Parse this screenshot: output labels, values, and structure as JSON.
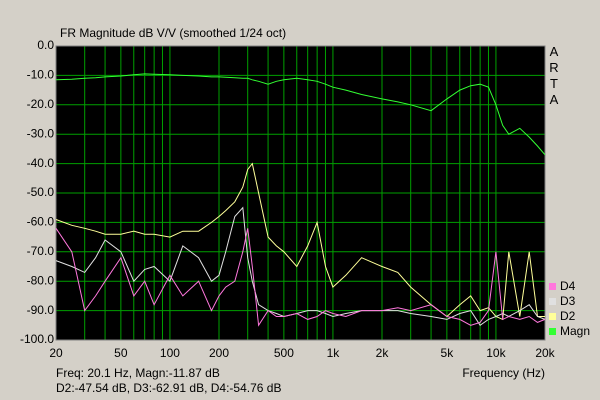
{
  "chart_data": {
    "type": "line",
    "title": "FR Magnitude dB V/V (smoothed 1/24 oct)",
    "x_label": "Frequency (Hz)",
    "brand": "ARTA",
    "readout": [
      "Freq: 20.1 Hz, Magn:-11.87 dB",
      "D2:-47.54 dB, D3:-62.91 dB, D4:-54.76 dB"
    ],
    "log_x": true,
    "grid": true,
    "grid_color": "#00a000",
    "background": "#000000",
    "legend": "lower right",
    "xlim": [
      20,
      20000
    ],
    "ylim": [
      -100,
      0
    ],
    "xticks": [
      20,
      50,
      100,
      200,
      500,
      {
        "value": 1000,
        "label": "1k"
      },
      {
        "value": 2000,
        "label": "2k"
      },
      {
        "value": 5000,
        "label": "5k"
      },
      {
        "value": 10000,
        "label": "10k"
      },
      {
        "value": 20000,
        "label": "20k"
      }
    ],
    "x_minor_grid": [
      30,
      40,
      60,
      70,
      80,
      90,
      300,
      400,
      600,
      700,
      800,
      900,
      3000,
      4000,
      6000,
      7000,
      8000,
      9000
    ],
    "yticks": [
      {
        "value": 0,
        "label": "0.0"
      },
      {
        "value": -10,
        "label": "-10.0"
      },
      {
        "value": -20,
        "label": "-20.0"
      },
      {
        "value": -30,
        "label": "-30.0"
      },
      {
        "value": -40,
        "label": "-40.0"
      },
      {
        "value": -50,
        "label": "-50.0"
      },
      {
        "value": -60,
        "label": "-60.0"
      },
      {
        "value": -70,
        "label": "-70.0"
      },
      {
        "value": -80,
        "label": "-80.0"
      },
      {
        "value": -90,
        "label": "-90.0"
      },
      {
        "value": -100,
        "label": "-100.0"
      }
    ],
    "x": [
      20,
      25,
      30,
      35,
      40,
      50,
      60,
      70,
      80,
      100,
      120,
      150,
      180,
      200,
      220,
      250,
      280,
      300,
      320,
      350,
      400,
      450,
      500,
      600,
      700,
      800,
      900,
      1000,
      1200,
      1500,
      2000,
      2500,
      3000,
      4000,
      5000,
      6000,
      7000,
      8000,
      9000,
      10000,
      11000,
      12000,
      14000,
      16000,
      18000,
      20000
    ],
    "series": [
      {
        "name": "Magn",
        "color": "#33ff33",
        "values": [
          -11.5,
          -11.3,
          -11,
          -10.8,
          -10.5,
          -10.2,
          -9.8,
          -9.5,
          -9.6,
          -9.8,
          -10,
          -10.2,
          -10.5,
          -10.5,
          -10.6,
          -10.8,
          -11,
          -11,
          -11.5,
          -12,
          -13,
          -12,
          -11.5,
          -11,
          -11.5,
          -12,
          -13,
          -14,
          -15,
          -16.5,
          -18,
          -19,
          -20,
          -22,
          -18,
          -15,
          -13.5,
          -13,
          -14,
          -20,
          -27,
          -30,
          -28,
          -31,
          -34,
          -37
        ]
      },
      {
        "name": "D2",
        "color": "#ffff99",
        "values": [
          -59,
          -61,
          -62,
          -63,
          -64,
          -64,
          -63,
          -64,
          -64,
          -65,
          -63,
          -63,
          -60,
          -58,
          -56,
          -53,
          -48,
          -42,
          -40,
          -50,
          -65,
          -68,
          -70,
          -75,
          -68,
          -60,
          -75,
          -82,
          -78,
          -72,
          -75,
          -77,
          -82,
          -88,
          -92,
          -88,
          -85,
          -90,
          -89,
          -92,
          -93,
          -70,
          -92,
          -70,
          -92,
          -92
        ]
      },
      {
        "name": "D3",
        "color": "#e0e0e0",
        "values": [
          -73,
          -75,
          -77,
          -72,
          -66,
          -70,
          -80,
          -76,
          -75,
          -80,
          -68,
          -72,
          -80,
          -78,
          -70,
          -58,
          -55,
          -72,
          -80,
          -88,
          -90,
          -91,
          -92,
          -91,
          -90,
          -90,
          -91,
          -92,
          -91,
          -90,
          -90,
          -90,
          -91,
          -92,
          -93,
          -91,
          -90,
          -95,
          -93,
          -92,
          -91,
          -92,
          -90,
          -88,
          -92,
          -93
        ]
      },
      {
        "name": "D4",
        "color": "#ff77dd",
        "values": [
          -62,
          -70,
          -90,
          -85,
          -80,
          -72,
          -85,
          -80,
          -88,
          -78,
          -85,
          -80,
          -90,
          -85,
          -82,
          -80,
          -70,
          -62,
          -75,
          -95,
          -90,
          -92,
          -92,
          -91,
          -93,
          -92,
          -90,
          -91,
          -92,
          -90,
          -90,
          -89,
          -90,
          -88,
          -92,
          -93,
          -95,
          -94,
          -90,
          -70,
          -93,
          -92,
          -93,
          -92,
          -94,
          -93
        ]
      }
    ]
  }
}
